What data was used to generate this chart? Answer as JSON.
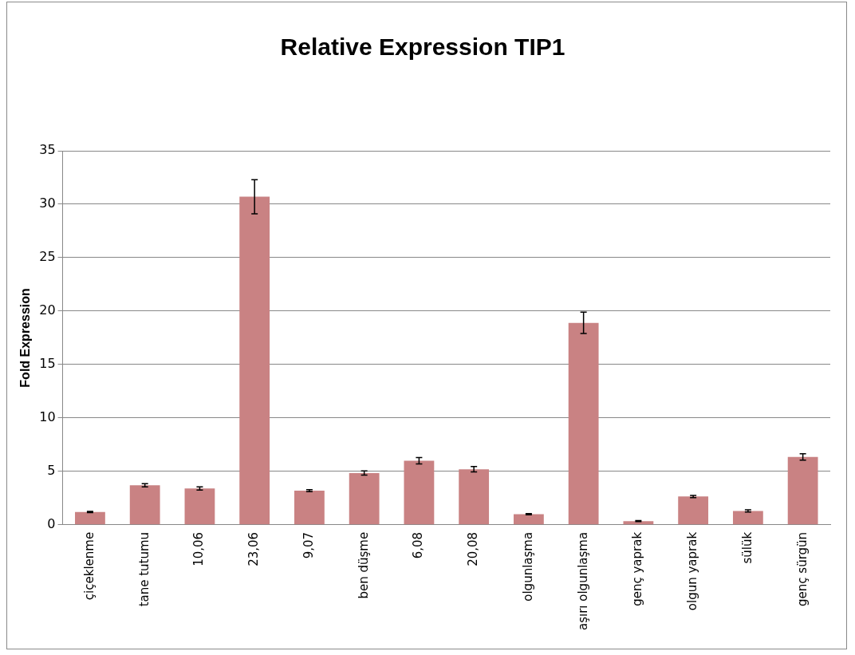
{
  "chart_data": {
    "type": "bar",
    "title": "Relative Expression TIP1",
    "ylabel": "Fold Expression",
    "categories": [
      "çiçeklenme",
      "tane tutumu",
      "10,06",
      "23,06",
      "9,07",
      "ben düşme",
      "6,08",
      "20,08",
      "olgunlaşma",
      "aşırı olgunlaşma",
      "genç yaprak",
      "olgun yaprak",
      "sülük",
      "genç sürgün"
    ],
    "values": [
      1.2,
      3.7,
      3.4,
      30.7,
      3.2,
      4.85,
      6.0,
      5.2,
      1.0,
      18.9,
      0.35,
      2.65,
      1.3,
      6.35
    ],
    "errors": [
      0.05,
      0.15,
      0.15,
      1.6,
      0.1,
      0.2,
      0.3,
      0.25,
      0.05,
      1.0,
      0.05,
      0.1,
      0.1,
      0.3
    ],
    "color": "#c98283",
    "ylim": [
      0,
      35
    ],
    "yticks": [
      0,
      5,
      10,
      15,
      20,
      25,
      30,
      35
    ],
    "grid": "y",
    "legend": false
  }
}
